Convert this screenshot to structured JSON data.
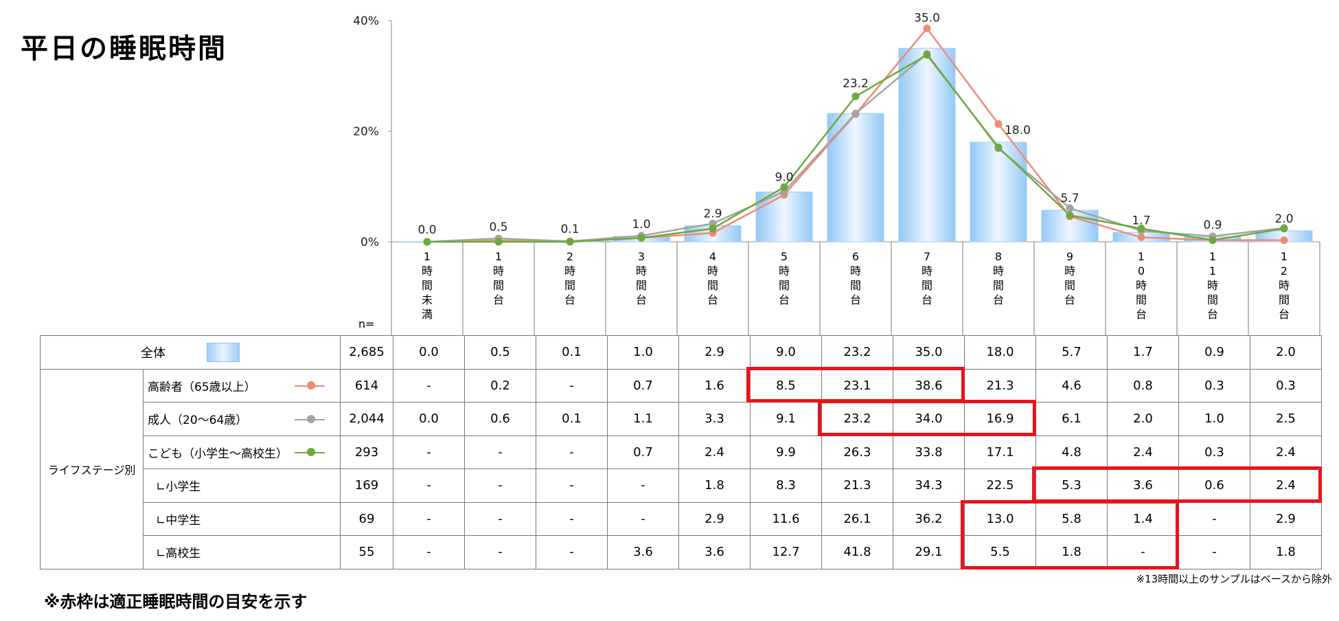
{
  "title": "平日の睡眠時間",
  "chart_data": {
    "type": "bar",
    "categories": [
      "1時間未満",
      "1時間台",
      "2時間台",
      "3時間台",
      "4時間台",
      "5時間台",
      "6時間台",
      "7時間台",
      "8時間台",
      "9時間台",
      "10時間台",
      "11時間台",
      "12時間台"
    ],
    "category_glyphs": [
      [
        "1",
        "時",
        "間",
        "未",
        "満"
      ],
      [
        "1",
        "時",
        "間",
        "台"
      ],
      [
        "2",
        "時",
        "間",
        "台"
      ],
      [
        "3",
        "時",
        "間",
        "台"
      ],
      [
        "4",
        "時",
        "間",
        "台"
      ],
      [
        "5",
        "時",
        "間",
        "台"
      ],
      [
        "6",
        "時",
        "間",
        "台"
      ],
      [
        "7",
        "時",
        "間",
        "台"
      ],
      [
        "8",
        "時",
        "間",
        "台"
      ],
      [
        "9",
        "時",
        "間",
        "台"
      ],
      [
        "1",
        "0",
        "時",
        "間",
        "台"
      ],
      [
        "1",
        "1",
        "時",
        "間",
        "台"
      ],
      [
        "1",
        "2",
        "時",
        "間",
        "台"
      ]
    ],
    "ylim": [
      0,
      40
    ],
    "yticks": [
      "0%",
      "20%",
      "40%"
    ],
    "bar_labels": [
      "0.0",
      "0.5",
      "0.1",
      "1.0",
      "2.9",
      "9.0",
      "23.2",
      "35.0",
      "18.0",
      "5.7",
      "1.7",
      "0.9",
      "2.0"
    ],
    "bar_series": {
      "values": [
        0.0,
        0.5,
        0.1,
        1.0,
        2.9,
        9.0,
        23.2,
        35.0,
        18.0,
        5.7,
        1.7,
        0.9,
        2.0
      ],
      "color": "#a8d2f8"
    },
    "line_series": [
      {
        "values": [
          0,
          0.2,
          0,
          0.7,
          1.6,
          8.5,
          23.1,
          38.6,
          21.3,
          4.6,
          0.8,
          0.3,
          0.3
        ],
        "color": "#ef8a76"
      },
      {
        "values": [
          0.0,
          0.6,
          0.1,
          1.1,
          3.3,
          9.1,
          23.2,
          34.0,
          16.9,
          6.1,
          2.0,
          1.0,
          2.5
        ],
        "color": "#a3a3a3"
      },
      {
        "values": [
          0,
          0,
          0,
          0.7,
          2.4,
          9.9,
          26.3,
          33.8,
          17.1,
          4.8,
          2.4,
          0.3,
          2.4
        ],
        "color": "#6fa83c"
      }
    ]
  },
  "table": {
    "n_header": "n=",
    "stage_label": "ライフステージ別",
    "total": {
      "name": "全体",
      "n": "2,685",
      "values": [
        "0.0",
        "0.5",
        "0.1",
        "1.0",
        "2.9",
        "9.0",
        "23.2",
        "35.0",
        "18.0",
        "5.7",
        "1.7",
        "0.9",
        "2.0"
      ]
    },
    "rows": [
      {
        "name": "高齢者（65歳以上）",
        "n": "614",
        "legend_color": "#ef8a76",
        "values": [
          "-",
          "0.2",
          "-",
          "0.7",
          "1.6",
          "8.5",
          "23.1",
          "38.6",
          "21.3",
          "4.6",
          "0.8",
          "0.3",
          "0.3"
        ]
      },
      {
        "name": "成人（20～64歳）",
        "n": "2,044",
        "legend_color": "#a3a3a3",
        "values": [
          "0.0",
          "0.6",
          "0.1",
          "1.1",
          "3.3",
          "9.1",
          "23.2",
          "34.0",
          "16.9",
          "6.1",
          "2.0",
          "1.0",
          "2.5"
        ]
      },
      {
        "name": "こども（小学生～高校生）",
        "n": "293",
        "legend_color": "#6fa83c",
        "values": [
          "-",
          "-",
          "-",
          "0.7",
          "2.4",
          "9.9",
          "26.3",
          "33.8",
          "17.1",
          "4.8",
          "2.4",
          "0.3",
          "2.4"
        ]
      },
      {
        "name": "∟小学生",
        "n": "169",
        "values": [
          "-",
          "-",
          "-",
          "-",
          "1.8",
          "8.3",
          "21.3",
          "34.3",
          "22.5",
          "5.3",
          "3.6",
          "0.6",
          "2.4"
        ]
      },
      {
        "name": "∟中学生",
        "n": "69",
        "values": [
          "-",
          "-",
          "-",
          "-",
          "2.9",
          "11.6",
          "26.1",
          "36.2",
          "13.0",
          "5.8",
          "1.4",
          "-",
          "2.9"
        ]
      },
      {
        "name": "∟高校生",
        "n": "55",
        "values": [
          "-",
          "-",
          "-",
          "3.6",
          "3.6",
          "12.7",
          "41.8",
          "29.1",
          "5.5",
          "1.8",
          "-",
          "-",
          "1.8"
        ]
      }
    ]
  },
  "note_excluded": "※13時間以上のサンプルはベースから除外",
  "note_redbox": "※赤枠は適正睡眠時間の目安を示す",
  "highlight_color": "#e8141c"
}
